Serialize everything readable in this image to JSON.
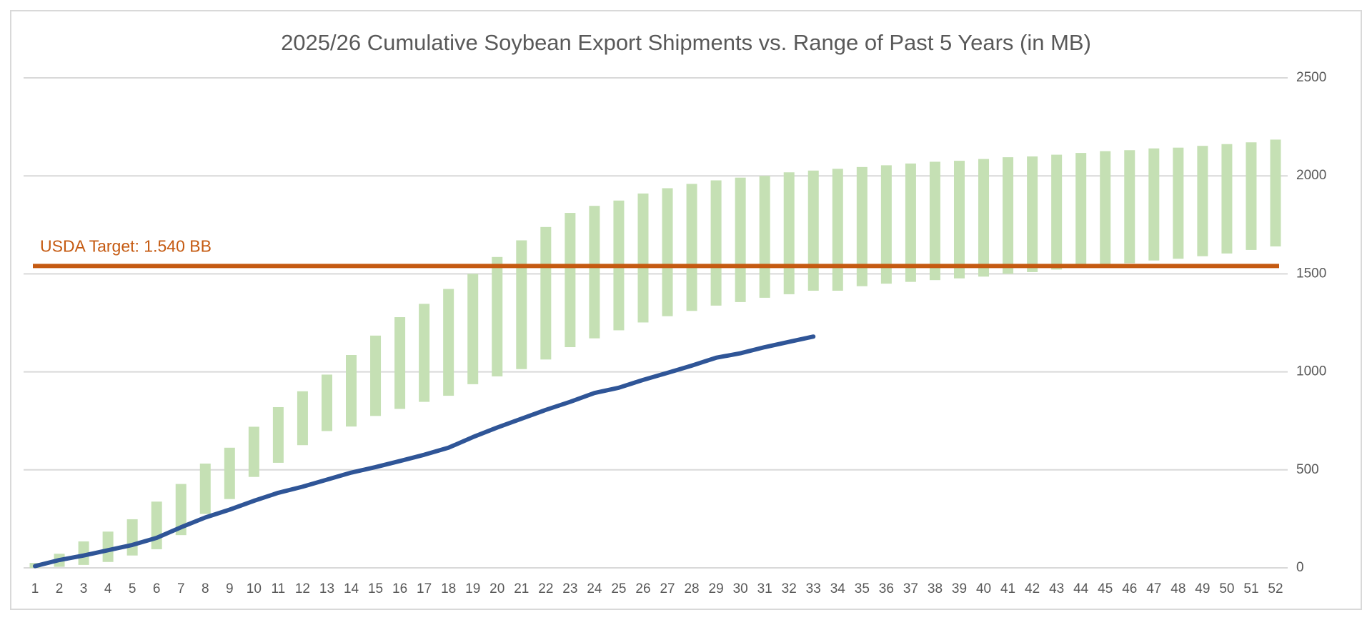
{
  "chart_data": {
    "type": "range_bar_line",
    "title": "2025/26 Cumulative Soybean Export Shipments vs. Range of Past 5 Years (in MB)",
    "categories": [
      1,
      2,
      3,
      4,
      5,
      6,
      7,
      8,
      9,
      10,
      11,
      12,
      13,
      14,
      15,
      16,
      17,
      18,
      19,
      20,
      21,
      22,
      23,
      24,
      25,
      26,
      27,
      28,
      29,
      30,
      31,
      32,
      33,
      34,
      35,
      36,
      37,
      38,
      39,
      40,
      41,
      42,
      43,
      44,
      45,
      46,
      47,
      48,
      49,
      50,
      51,
      52
    ],
    "range": {
      "color": "#c5e0b4",
      "low": [
        0,
        5,
        15,
        30,
        63,
        95,
        167,
        275,
        351,
        464,
        536,
        626,
        698,
        721,
        775,
        811,
        847,
        878,
        937,
        977,
        1014,
        1063,
        1126,
        1171,
        1212,
        1252,
        1284,
        1311,
        1338,
        1356,
        1378,
        1396,
        1414,
        1414,
        1437,
        1450,
        1459,
        1468,
        1477,
        1486,
        1500,
        1509,
        1522,
        1531,
        1545,
        1554,
        1568,
        1577,
        1590,
        1604,
        1622,
        1640
      ],
      "high": [
        25,
        72,
        135,
        185,
        248,
        338,
        428,
        532,
        613,
        720,
        820,
        901,
        986,
        1086,
        1185,
        1279,
        1347,
        1423,
        1500,
        1586,
        1671,
        1739,
        1811,
        1847,
        1874,
        1910,
        1937,
        1959,
        1977,
        1991,
        2000,
        2018,
        2027,
        2036,
        2045,
        2054,
        2063,
        2072,
        2077,
        2086,
        2095,
        2099,
        2108,
        2117,
        2126,
        2131,
        2140,
        2144,
        2153,
        2162,
        2171,
        2185
      ]
    },
    "line": {
      "color": "#2f5597",
      "values": [
        9,
        40,
        63,
        90,
        117,
        153,
        207,
        257,
        297,
        342,
        383,
        414,
        450,
        486,
        514,
        545,
        577,
        613,
        667,
        716,
        761,
        806,
        847,
        892,
        919,
        959,
        995,
        1032,
        1072,
        1095,
        1126,
        1153,
        1180
      ]
    },
    "reference_line": {
      "value": 1540,
      "label": "USDA Target: 1.540 BB",
      "color": "#c55a11"
    },
    "ylim": [
      0,
      2500
    ],
    "yticks": [
      0,
      500,
      1000,
      1500,
      2000,
      2500
    ],
    "y_axis_side": "right",
    "grid": true
  }
}
